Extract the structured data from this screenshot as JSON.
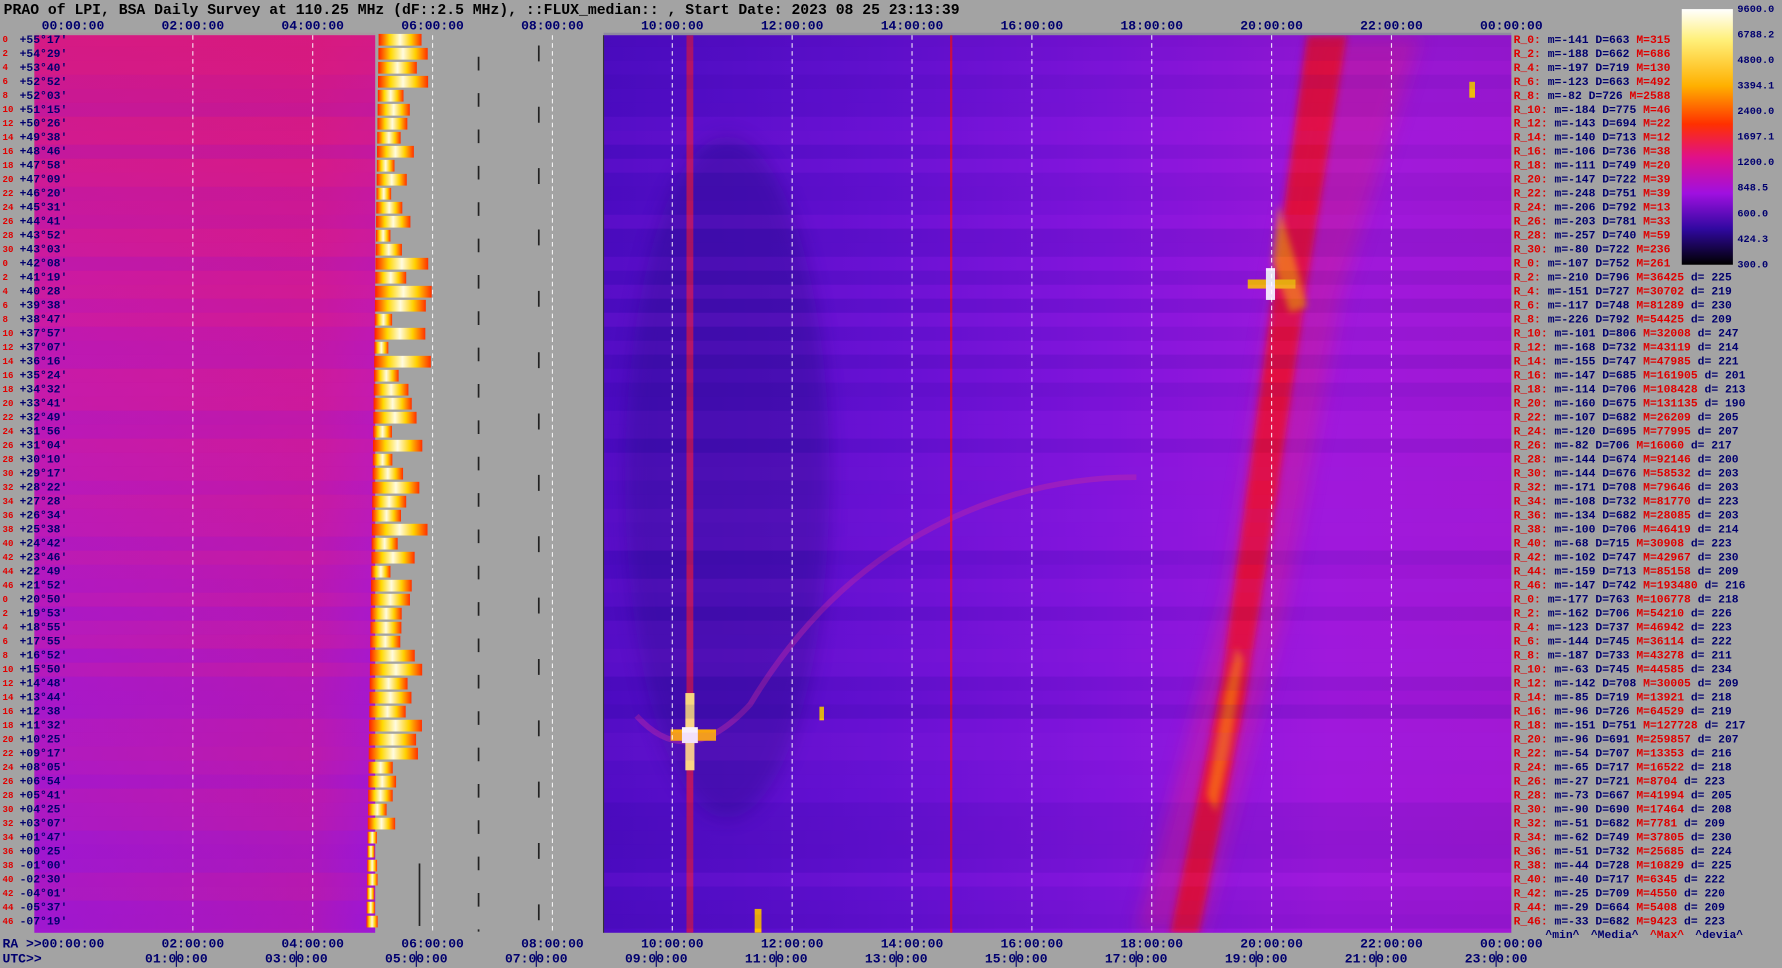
{
  "title": "PRAO of LPI, BSA Daily Survey at 110.25 MHz (dF::2.5 MHz), ::FLUX_median:: , Start Date: 2023 08 25 23:13:39",
  "top_axis": [
    "00:00:00",
    "02:00:00",
    "04:00:00",
    "06:00:00",
    "08:00:00",
    "10:00:00",
    "12:00:00",
    "14:00:00",
    "16:00:00",
    "18:00:00",
    "20:00:00",
    "22:00:00",
    "00:00:00"
  ],
  "ra_prefix": "RA >>",
  "ra_axis": [
    "00:00:00",
    "02:00:00",
    "04:00:00",
    "06:00:00",
    "08:00:00",
    "10:00:00",
    "12:00:00",
    "14:00:00",
    "16:00:00",
    "18:00:00",
    "20:00:00",
    "22:00:00",
    "00:00:00"
  ],
  "utc_prefix": "UTC>>",
  "utc_axis": [
    "01:00:00",
    "03:00:00",
    "05:00:00",
    "07:00:00",
    "09:00:00",
    "11:00:00",
    "13:00:00",
    "15:00:00",
    "17:00:00",
    "19:00:00",
    "21:00:00",
    "23:00:00"
  ],
  "colorbar_labels": [
    "9600.0",
    "6788.2",
    "4800.0",
    "3394.1",
    "2400.0",
    "1697.1",
    "1200.0",
    "848.5",
    "600.0",
    "424.3",
    "300.0"
  ],
  "rows": [
    {
      "n": "0",
      "dec": "+55°17'"
    },
    {
      "n": "2",
      "dec": "+54°29'"
    },
    {
      "n": "4",
      "dec": "+53°40'"
    },
    {
      "n": "6",
      "dec": "+52°52'"
    },
    {
      "n": "8",
      "dec": "+52°03'"
    },
    {
      "n": "10",
      "dec": "+51°15'"
    },
    {
      "n": "12",
      "dec": "+50°26'"
    },
    {
      "n": "14",
      "dec": "+49°38'"
    },
    {
      "n": "16",
      "dec": "+48°46'"
    },
    {
      "n": "18",
      "dec": "+47°58'"
    },
    {
      "n": "20",
      "dec": "+47°09'"
    },
    {
      "n": "22",
      "dec": "+46°20'"
    },
    {
      "n": "24",
      "dec": "+45°31'"
    },
    {
      "n": "26",
      "dec": "+44°41'"
    },
    {
      "n": "28",
      "dec": "+43°52'"
    },
    {
      "n": "30",
      "dec": "+43°03'"
    },
    {
      "n": "0",
      "dec": "+42°08'"
    },
    {
      "n": "2",
      "dec": "+41°19'"
    },
    {
      "n": "4",
      "dec": "+40°28'"
    },
    {
      "n": "6",
      "dec": "+39°38'"
    },
    {
      "n": "8",
      "dec": "+38°47'"
    },
    {
      "n": "10",
      "dec": "+37°57'"
    },
    {
      "n": "12",
      "dec": "+37°07'"
    },
    {
      "n": "14",
      "dec": "+36°16'"
    },
    {
      "n": "16",
      "dec": "+35°24'"
    },
    {
      "n": "18",
      "dec": "+34°32'"
    },
    {
      "n": "20",
      "dec": "+33°41'"
    },
    {
      "n": "22",
      "dec": "+32°49'"
    },
    {
      "n": "24",
      "dec": "+31°56'"
    },
    {
      "n": "26",
      "dec": "+31°04'"
    },
    {
      "n": "28",
      "dec": "+30°10'"
    },
    {
      "n": "30",
      "dec": "+29°17'"
    },
    {
      "n": "32",
      "dec": "+28°22'"
    },
    {
      "n": "34",
      "dec": "+27°28'"
    },
    {
      "n": "36",
      "dec": "+26°34'"
    },
    {
      "n": "38",
      "dec": "+25°38'"
    },
    {
      "n": "40",
      "dec": "+24°42'"
    },
    {
      "n": "42",
      "dec": "+23°46'"
    },
    {
      "n": "44",
      "dec": "+22°49'"
    },
    {
      "n": "46",
      "dec": "+21°52'"
    },
    {
      "n": "0",
      "dec": "+20°50'"
    },
    {
      "n": "2",
      "dec": "+19°53'"
    },
    {
      "n": "4",
      "dec": "+18°55'"
    },
    {
      "n": "6",
      "dec": "+17°55'"
    },
    {
      "n": "8",
      "dec": "+16°52'"
    },
    {
      "n": "10",
      "dec": "+15°50'"
    },
    {
      "n": "12",
      "dec": "+14°48'"
    },
    {
      "n": "14",
      "dec": "+13°44'"
    },
    {
      "n": "16",
      "dec": "+12°38'"
    },
    {
      "n": "18",
      "dec": "+11°32'"
    },
    {
      "n": "20",
      "dec": "+10°25'"
    },
    {
      "n": "22",
      "dec": "+09°17'"
    },
    {
      "n": "24",
      "dec": "+08°05'"
    },
    {
      "n": "26",
      "dec": "+06°54'"
    },
    {
      "n": "28",
      "dec": "+05°41'"
    },
    {
      "n": "30",
      "dec": "+04°25'"
    },
    {
      "n": "32",
      "dec": "+03°07'"
    },
    {
      "n": "34",
      "dec": "+01°47'"
    },
    {
      "n": "36",
      "dec": "+00°25'"
    },
    {
      "n": "38",
      "dec": "-01°00'"
    },
    {
      "n": "40",
      "dec": "-02°30'"
    },
    {
      "n": "42",
      "dec": "-04°01'"
    },
    {
      "n": "44",
      "dec": "-05°37'"
    },
    {
      "n": "46",
      "dec": "-07°19'"
    }
  ],
  "stats": [
    {
      "id": "R_0:",
      "mD": "m=-141 D=663",
      "M": "M=315"
    },
    {
      "id": "R_2:",
      "mD": "m=-188 D=662",
      "M": "M=686"
    },
    {
      "id": "R_4:",
      "mD": "m=-197 D=719",
      "M": "M=130"
    },
    {
      "id": "R_6:",
      "mD": "m=-123 D=663",
      "M": "M=492"
    },
    {
      "id": "R_8:",
      "mD": "m=-82 D=726",
      "M": "M=2588"
    },
    {
      "id": "R_10:",
      "mD": "m=-184 D=775",
      "M": "M=46"
    },
    {
      "id": "R_12:",
      "mD": "m=-143 D=694",
      "M": "M=22"
    },
    {
      "id": "R_14:",
      "mD": "m=-140 D=713",
      "M": "M=12"
    },
    {
      "id": "R_16:",
      "mD": "m=-106 D=736",
      "M": "M=38"
    },
    {
      "id": "R_18:",
      "mD": "m=-111 D=749",
      "M": "M=20"
    },
    {
      "id": "R_20:",
      "mD": "m=-147 D=722",
      "M": "M=39"
    },
    {
      "id": "R_22:",
      "mD": "m=-248 D=751",
      "M": "M=39"
    },
    {
      "id": "R_24:",
      "mD": "m=-206 D=792",
      "M": "M=13"
    },
    {
      "id": "R_26:",
      "mD": "m=-203 D=781",
      "M": "M=33"
    },
    {
      "id": "R_28:",
      "mD": "m=-257 D=740",
      "M": "M=59"
    },
    {
      "id": "R_30:",
      "mD": "m=-80 D=722",
      "M": "M=236"
    },
    {
      "id": "R_0:",
      "mD": "m=-107 D=752",
      "M": "M=261"
    },
    {
      "id": "R_2:",
      "mD": "m=-210 D=796",
      "M": "M=36425",
      "d": "d= 225"
    },
    {
      "id": "R_4:",
      "mD": "m=-151 D=727",
      "M": "M=30702",
      "d": "d= 219"
    },
    {
      "id": "R_6:",
      "mD": "m=-117 D=748",
      "M": "M=81289",
      "d": "d= 230"
    },
    {
      "id": "R_8:",
      "mD": "m=-226 D=792",
      "M": "M=54425",
      "d": "d= 209"
    },
    {
      "id": "R_10:",
      "mD": "m=-101 D=806",
      "M": "M=32008",
      "d": "d= 247"
    },
    {
      "id": "R_12:",
      "mD": "m=-168 D=732",
      "M": "M=43119",
      "d": "d= 214"
    },
    {
      "id": "R_14:",
      "mD": "m=-155 D=747",
      "M": "M=47985",
      "d": "d= 221"
    },
    {
      "id": "R_16:",
      "mD": "m=-147 D=685",
      "M": "M=161905",
      "d": "d= 201"
    },
    {
      "id": "R_18:",
      "mD": "m=-114 D=706",
      "M": "M=108428",
      "d": "d= 213"
    },
    {
      "id": "R_20:",
      "mD": "m=-160 D=675",
      "M": "M=131135",
      "d": "d= 190"
    },
    {
      "id": "R_22:",
      "mD": "m=-107 D=682",
      "M": "M=26209",
      "d": "d= 205"
    },
    {
      "id": "R_24:",
      "mD": "m=-120 D=695",
      "M": "M=77995",
      "d": "d= 207"
    },
    {
      "id": "R_26:",
      "mD": "m=-82 D=706",
      "M": "M=16060",
      "d": "d= 217"
    },
    {
      "id": "R_28:",
      "mD": "m=-144 D=674",
      "M": "M=92146",
      "d": "d= 200"
    },
    {
      "id": "R_30:",
      "mD": "m=-144 D=676",
      "M": "M=58532",
      "d": "d= 203"
    },
    {
      "id": "R_32:",
      "mD": "m=-171 D=708",
      "M": "M=79646",
      "d": "d= 203"
    },
    {
      "id": "R_34:",
      "mD": "m=-108 D=732",
      "M": "M=81770",
      "d": "d= 223"
    },
    {
      "id": "R_36:",
      "mD": "m=-134 D=682",
      "M": "M=28085",
      "d": "d= 203"
    },
    {
      "id": "R_38:",
      "mD": "m=-100 D=706",
      "M": "M=46419",
      "d": "d= 214"
    },
    {
      "id": "R_40:",
      "mD": "m=-68 D=715",
      "M": "M=30908",
      "d": "d= 223"
    },
    {
      "id": "R_42:",
      "mD": "m=-102 D=747",
      "M": "M=42967",
      "d": "d= 230"
    },
    {
      "id": "R_44:",
      "mD": "m=-159 D=713",
      "M": "M=85158",
      "d": "d= 209"
    },
    {
      "id": "R_46:",
      "mD": "m=-147 D=742",
      "M": "M=193480",
      "d": "d= 216"
    },
    {
      "id": "R_0:",
      "mD": "m=-177 D=763",
      "M": "M=106778",
      "d": "d= 218"
    },
    {
      "id": "R_2:",
      "mD": "m=-162 D=706",
      "M": "M=54210",
      "d": "d= 226"
    },
    {
      "id": "R_4:",
      "mD": "m=-123 D=737",
      "M": "M=46942",
      "d": "d= 223"
    },
    {
      "id": "R_6:",
      "mD": "m=-144 D=745",
      "M": "M=36114",
      "d": "d= 222"
    },
    {
      "id": "R_8:",
      "mD": "m=-187 D=733",
      "M": "M=43278",
      "d": "d= 211"
    },
    {
      "id": "R_10:",
      "mD": "m=-63 D=745",
      "M": "M=44585",
      "d": "d= 234"
    },
    {
      "id": "R_12:",
      "mD": "m=-142 D=708",
      "M": "M=30005",
      "d": "d= 209"
    },
    {
      "id": "R_14:",
      "mD": "m=-85 D=719",
      "M": "M=13921",
      "d": "d= 218"
    },
    {
      "id": "R_16:",
      "mD": "m=-96 D=726",
      "M": "M=64529",
      "d": "d= 219"
    },
    {
      "id": "R_18:",
      "mD": "m=-151 D=751",
      "M": "M=127728",
      "d": "d= 217"
    },
    {
      "id": "R_20:",
      "mD": "m=-96 D=691",
      "M": "M=259857",
      "d": "d= 207"
    },
    {
      "id": "R_22:",
      "mD": "m=-54 D=707",
      "M": "M=13353",
      "d": "d= 216"
    },
    {
      "id": "R_24:",
      "mD": "m=-65 D=717",
      "M": "M=16522",
      "d": "d= 218"
    },
    {
      "id": "R_26:",
      "mD": "m=-27 D=721",
      "M": "M=8704",
      "d": "d= 223"
    },
    {
      "id": "R_28:",
      "mD": "m=-73 D=667",
      "M": "M=41994",
      "d": "d= 205"
    },
    {
      "id": "R_30:",
      "mD": "m=-90 D=690",
      "M": "M=17464",
      "d": "d= 208"
    },
    {
      "id": "R_32:",
      "mD": "m=-51 D=682",
      "M": "M=7781",
      "d": "d= 209"
    },
    {
      "id": "R_34:",
      "mD": "m=-62 D=749",
      "M": "M=37805",
      "d": "d= 230"
    },
    {
      "id": "R_36:",
      "mD": "m=-51 D=732",
      "M": "M=25685",
      "d": "d= 224"
    },
    {
      "id": "R_38:",
      "mD": "m=-44 D=728",
      "M": "M=10829",
      "d": "d= 225"
    },
    {
      "id": "R_40:",
      "mD": "m=-40 D=717",
      "M": "M=6345",
      "d": "d= 222"
    },
    {
      "id": "R_42:",
      "mD": "m=-25 D=709",
      "M": "M=4550",
      "d": "d= 220"
    },
    {
      "id": "R_44:",
      "mD": "m=-29 D=664",
      "M": "M=5408",
      "d": "d= 209"
    },
    {
      "id": "R_46:",
      "mD": "m=-33 D=682",
      "M": "M=9423",
      "d": "d= 223"
    }
  ],
  "stats_legend": [
    {
      "text": "^min^",
      "color": "#00006e"
    },
    {
      "text": "^Media^",
      "color": "#00006e"
    },
    {
      "text": "^Max^",
      "color": "#e00000"
    },
    {
      "text": "^devia^",
      "color": "#00006e"
    }
  ]
}
